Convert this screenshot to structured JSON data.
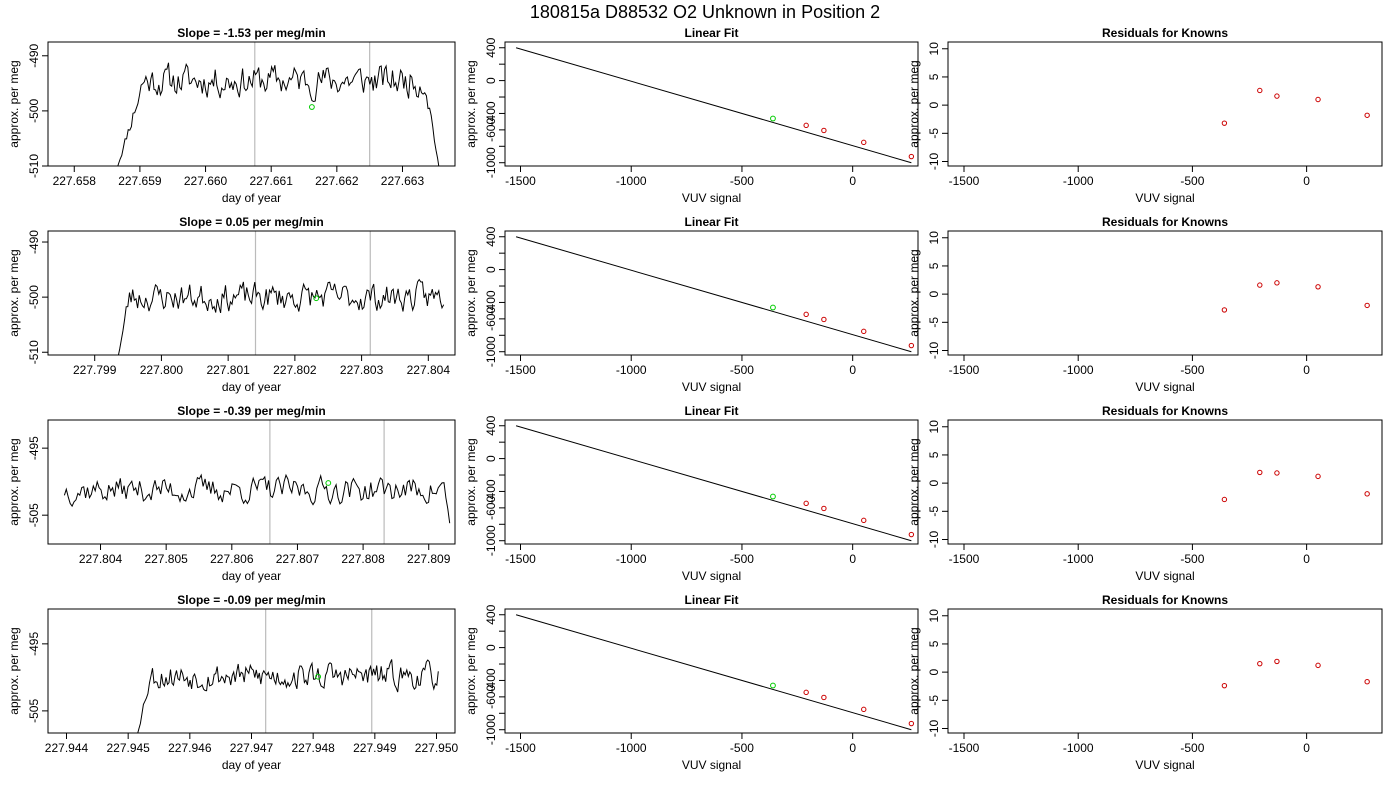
{
  "page_title": "180815a      D88532    O2 Unknown in Position  2",
  "colors": {
    "trace": "#000000",
    "knowns": "#cc0000",
    "unknown": "#00cc00",
    "marker_lines": "#bbbbbb",
    "frame": "#000000"
  },
  "chart_data": [
    {
      "type": "line",
      "title": "Slope =  -1.53  per meg/min",
      "xlabel": "day of year",
      "ylabel": "approx. per meg",
      "xlim": [
        227.6576,
        227.6638
      ],
      "ylim": [
        -510,
        -487.5
      ],
      "xticks": [
        227.658,
        227.659,
        227.66,
        227.661,
        227.662,
        227.663
      ],
      "xtick_labels": [
        "227.658",
        "227.659",
        "227.660",
        "227.661",
        "227.662",
        "227.663"
      ],
      "yticks": [
        -510,
        -500,
        -490
      ],
      "ytick_labels": [
        "-510",
        "-500",
        "-490"
      ],
      "vlines": [
        227.66075,
        227.6625
      ],
      "unknown_point": [
        227.66162,
        -499.3
      ],
      "trace_start": 227.65865,
      "trace_end": 227.66356,
      "trace_base": -494.5,
      "trace_amp": 2.8,
      "trace_seed": 11,
      "trace_rise": [
        227.65865,
        227.65905,
        -510.5
      ],
      "trace_fall": [
        227.66335,
        227.66356,
        -510.5
      ]
    },
    {
      "type": "scatter",
      "title": "Linear Fit",
      "xlabel": "VUV signal",
      "ylabel": "approx. per meg",
      "xlim": [
        -1570,
        295
      ],
      "ylim": [
        -1040,
        470
      ],
      "xticks": [
        -1500,
        -1000,
        -500,
        0
      ],
      "xtick_labels": [
        "-1500",
        "-1000",
        "-500",
        "0"
      ],
      "yticks": [
        -1000,
        -800,
        -600,
        -400,
        -200,
        0,
        200,
        400
      ],
      "ytick_labels": [
        "-1000",
        "",
        "-600",
        "-400",
        "",
        "0",
        "",
        "400"
      ],
      "fit_line": [
        [
          -1520,
          400
        ],
        [
          265,
          -1000
        ]
      ],
      "knowns": [
        [
          -210,
          -545
        ],
        [
          -130,
          -607
        ],
        [
          50,
          -752
        ],
        [
          265,
          -925
        ]
      ],
      "unknown": [
        [
          -360,
          -462
        ]
      ]
    },
    {
      "type": "scatter",
      "title": "Residuals for Knowns",
      "xlabel": "VUV signal",
      "ylabel": "approx. per meg",
      "xlim": [
        -1570,
        330
      ],
      "ylim": [
        -10.8,
        11.2
      ],
      "xticks": [
        -1500,
        -1000,
        -500,
        0
      ],
      "xtick_labels": [
        "-1500",
        "-1000",
        "-500",
        "0"
      ],
      "yticks": [
        -10,
        -5,
        0,
        5,
        10
      ],
      "ytick_labels": [
        "-10",
        "-5",
        "0",
        "5",
        "10"
      ],
      "points": [
        [
          -360,
          -3.2
        ],
        [
          -205,
          2.6
        ],
        [
          -130,
          1.6
        ],
        [
          50,
          1.0
        ],
        [
          265,
          -1.8
        ]
      ]
    },
    {
      "type": "line",
      "title": "Slope =  0.05  per meg/min",
      "xlabel": "day of year",
      "ylabel": "approx. per meg",
      "xlim": [
        227.7983,
        227.8044
      ],
      "ylim": [
        -510.5,
        -488
      ],
      "xticks": [
        227.799,
        227.8,
        227.801,
        227.802,
        227.803,
        227.804
      ],
      "xtick_labels": [
        "227.799",
        "227.800",
        "227.801",
        "227.802",
        "227.803",
        "227.804"
      ],
      "yticks": [
        -510,
        -500,
        -490
      ],
      "ytick_labels": [
        "-510",
        "-500",
        "-490"
      ],
      "vlines": [
        227.80141,
        227.80313
      ],
      "unknown_point": [
        227.80232,
        -500.2
      ],
      "trace_start": 227.79935,
      "trace_end": 227.80423,
      "trace_base": -500,
      "trace_amp": 2.5,
      "trace_seed": 23,
      "trace_rise": [
        227.79935,
        227.79952,
        -510.8
      ],
      "trace_fall": null
    },
    {
      "type": "scatter",
      "title": "Linear Fit",
      "xlabel": "VUV signal",
      "ylabel": "approx. per meg",
      "xlim": [
        -1570,
        295
      ],
      "ylim": [
        -1040,
        470
      ],
      "xticks": [
        -1500,
        -1000,
        -500,
        0
      ],
      "xtick_labels": [
        "-1500",
        "-1000",
        "-500",
        "0"
      ],
      "yticks": [
        -1000,
        -800,
        -600,
        -400,
        -200,
        0,
        200,
        400
      ],
      "ytick_labels": [
        "-1000",
        "",
        "-600",
        "-400",
        "",
        "0",
        "",
        "400"
      ],
      "fit_line": [
        [
          -1520,
          400
        ],
        [
          265,
          -1000
        ]
      ],
      "knowns": [
        [
          -210,
          -545
        ],
        [
          -130,
          -607
        ],
        [
          50,
          -752
        ],
        [
          265,
          -925
        ]
      ],
      "unknown": [
        [
          -360,
          -462
        ]
      ]
    },
    {
      "type": "scatter",
      "title": "Residuals for Knowns",
      "xlabel": "VUV signal",
      "ylabel": "approx. per meg",
      "xlim": [
        -1570,
        330
      ],
      "ylim": [
        -10.8,
        11.2
      ],
      "xticks": [
        -1500,
        -1000,
        -500,
        0
      ],
      "xtick_labels": [
        "-1500",
        "-1000",
        "-500",
        "0"
      ],
      "yticks": [
        -10,
        -5,
        0,
        5,
        10
      ],
      "ytick_labels": [
        "-10",
        "-5",
        "0",
        "5",
        "10"
      ],
      "points": [
        [
          -360,
          -2.8
        ],
        [
          -205,
          1.6
        ],
        [
          -130,
          2.0
        ],
        [
          50,
          1.3
        ],
        [
          265,
          -2.0
        ]
      ]
    },
    {
      "type": "line",
      "title": "Slope =  -0.39  per meg/min",
      "xlabel": "day of year",
      "ylabel": "approx. per meg",
      "xlim": [
        227.8032,
        227.8094
      ],
      "ylim": [
        -509.3,
        -490.8
      ],
      "xticks": [
        227.804,
        227.805,
        227.806,
        227.807,
        227.808,
        227.809
      ],
      "xtick_labels": [
        "227.804",
        "227.805",
        "227.806",
        "227.807",
        "227.808",
        "227.809"
      ],
      "yticks": [
        -505,
        -495
      ],
      "ytick_labels": [
        "-505",
        "-495"
      ],
      "vlines": [
        227.80658,
        227.80832
      ],
      "unknown_point": [
        227.80747,
        -500.2
      ],
      "trace_start": 227.80345,
      "trace_end": 227.80932,
      "trace_base": -501.2,
      "trace_amp": 1.9,
      "trace_seed": 37,
      "trace_rise": null,
      "trace_fall": [
        227.80925,
        227.80936,
        -509.5
      ]
    },
    {
      "type": "scatter",
      "title": "Linear Fit",
      "xlabel": "VUV signal",
      "ylabel": "approx. per meg",
      "xlim": [
        -1570,
        295
      ],
      "ylim": [
        -1040,
        470
      ],
      "xticks": [
        -1500,
        -1000,
        -500,
        0
      ],
      "xtick_labels": [
        "-1500",
        "-1000",
        "-500",
        "0"
      ],
      "yticks": [
        -1000,
        -800,
        -600,
        -400,
        -200,
        0,
        200,
        400
      ],
      "ytick_labels": [
        "-1000",
        "",
        "-600",
        "-400",
        "",
        "0",
        "",
        "400"
      ],
      "fit_line": [
        [
          -1520,
          400
        ],
        [
          265,
          -1000
        ]
      ],
      "knowns": [
        [
          -210,
          -545
        ],
        [
          -130,
          -607
        ],
        [
          50,
          -752
        ],
        [
          265,
          -925
        ]
      ],
      "unknown": [
        [
          -360,
          -462
        ]
      ]
    },
    {
      "type": "scatter",
      "title": "Residuals for Knowns",
      "xlabel": "VUV signal",
      "ylabel": "approx. per meg",
      "xlim": [
        -1570,
        330
      ],
      "ylim": [
        -10.8,
        11.2
      ],
      "xticks": [
        -1500,
        -1000,
        -500,
        0
      ],
      "xtick_labels": [
        "-1500",
        "-1000",
        "-500",
        "0"
      ],
      "yticks": [
        -10,
        -5,
        0,
        5,
        10
      ],
      "ytick_labels": [
        "-10",
        "-5",
        "0",
        "5",
        "10"
      ],
      "points": [
        [
          -360,
          -2.9
        ],
        [
          -205,
          1.9
        ],
        [
          -130,
          1.8
        ],
        [
          50,
          1.2
        ],
        [
          265,
          -1.9
        ]
      ]
    },
    {
      "type": "line",
      "title": "Slope =  -0.09  per meg/min",
      "xlabel": "day of year",
      "ylabel": "approx. per meg",
      "xlim": [
        227.9437,
        227.9503
      ],
      "ylim": [
        -508.3,
        -489.8
      ],
      "xticks": [
        227.944,
        227.945,
        227.946,
        227.947,
        227.948,
        227.949,
        227.95
      ],
      "xtick_labels": [
        "227.944",
        "227.945",
        "227.946",
        "227.947",
        "227.948",
        "227.949",
        "227.950"
      ],
      "yticks": [
        -505,
        -495
      ],
      "ytick_labels": [
        "-505",
        "-495"
      ],
      "vlines": [
        227.94723,
        227.94895
      ],
      "unknown_point": [
        227.94808,
        -499.9
      ],
      "trace_start": 227.94515,
      "trace_end": 227.95003,
      "trace_base": -499.8,
      "trace_amp": 1.9,
      "trace_seed": 53,
      "trace_rise": [
        227.94515,
        227.94535,
        -508.5
      ],
      "trace_fall": null
    },
    {
      "type": "scatter",
      "title": "Linear Fit",
      "xlabel": "VUV signal",
      "ylabel": "approx. per meg",
      "xlim": [
        -1570,
        295
      ],
      "ylim": [
        -1040,
        470
      ],
      "xticks": [
        -1500,
        -1000,
        -500,
        0
      ],
      "xtick_labels": [
        "-1500",
        "-1000",
        "-500",
        "0"
      ],
      "yticks": [
        -1000,
        -800,
        -600,
        -400,
        -200,
        0,
        200,
        400
      ],
      "ytick_labels": [
        "-1000",
        "",
        "-600",
        "-400",
        "",
        "0",
        "",
        "400"
      ],
      "fit_line": [
        [
          -1520,
          400
        ],
        [
          265,
          -1000
        ]
      ],
      "knowns": [
        [
          -210,
          -545
        ],
        [
          -130,
          -607
        ],
        [
          50,
          -752
        ],
        [
          265,
          -925
        ]
      ],
      "unknown": [
        [
          -360,
          -462
        ]
      ]
    },
    {
      "type": "scatter",
      "title": "Residuals for Knowns",
      "xlabel": "VUV signal",
      "ylabel": "approx. per meg",
      "xlim": [
        -1570,
        330
      ],
      "ylim": [
        -10.8,
        11.2
      ],
      "xticks": [
        -1500,
        -1000,
        -500,
        0
      ],
      "xtick_labels": [
        "-1500",
        "-1000",
        "-500",
        "0"
      ],
      "yticks": [
        -10,
        -5,
        0,
        5,
        10
      ],
      "ytick_labels": [
        "-10",
        "-5",
        "0",
        "5",
        "10"
      ],
      "points": [
        [
          -360,
          -2.4
        ],
        [
          -205,
          1.5
        ],
        [
          -130,
          1.9
        ],
        [
          50,
          1.2
        ],
        [
          265,
          -1.7
        ]
      ]
    }
  ]
}
